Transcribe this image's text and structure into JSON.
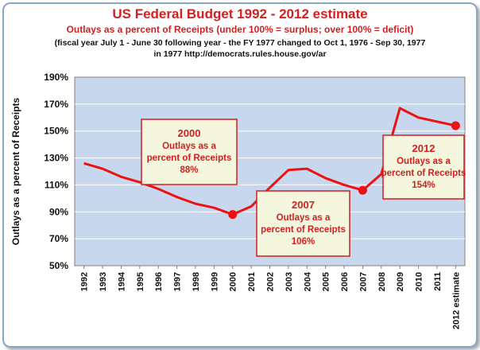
{
  "chart_data": {
    "type": "line",
    "title": "US Federal Budget 1992 - 2012 estimate",
    "subtitle": "Outlays as a percent of Receipts (under 100% = surplus; over 100% = deficit)",
    "notes": [
      "(fiscal year July 1 - June 30 following year - the FY 1977 changed to Oct 1, 1976 - Sep 30, 1977",
      "in 1977 http://democrats.rules.house.gov/ar"
    ],
    "xlabel": "",
    "ylabel": "Outlays as a percent of  Receipts",
    "categories": [
      "1992",
      "1993",
      "1994",
      "1995",
      "1996",
      "1997",
      "1998",
      "1999",
      "2000",
      "2001",
      "2002",
      "2003",
      "2004",
      "2005",
      "2006",
      "2007",
      "2008",
      "2009",
      "2010",
      "2011",
      "2012 estimate"
    ],
    "values": [
      126,
      122,
      116,
      112,
      107,
      101,
      96,
      93,
      88,
      94,
      108,
      121,
      122,
      115,
      110,
      106,
      118,
      167,
      160,
      157,
      154
    ],
    "y_ticks": [
      "50%",
      "70%",
      "90%",
      "110%",
      "130%",
      "150%",
      "170%",
      "190%"
    ],
    "ylim": [
      50,
      190
    ],
    "grid": true,
    "colors": {
      "line": "#ee1111",
      "marker": "#ee1111",
      "plot_background": "#c7d7ee",
      "title": "#d21f1f",
      "annotation_fill": "#f4f6dd",
      "annotation_border": "#d21f1f"
    },
    "annotations": [
      {
        "category": "2000",
        "lines": [
          "2000",
          "Outlays as a",
          "percent of Receipts",
          "88%"
        ]
      },
      {
        "category": "2007",
        "lines": [
          "2007",
          "Outlays as a",
          "percent of Receipts",
          "106%"
        ]
      },
      {
        "category": "2012 estimate",
        "lines": [
          "2012",
          "Outlays as a",
          "percent of Receipts",
          "154%"
        ]
      }
    ],
    "highlighted_points": [
      "2000",
      "2007",
      "2012 estimate"
    ]
  }
}
